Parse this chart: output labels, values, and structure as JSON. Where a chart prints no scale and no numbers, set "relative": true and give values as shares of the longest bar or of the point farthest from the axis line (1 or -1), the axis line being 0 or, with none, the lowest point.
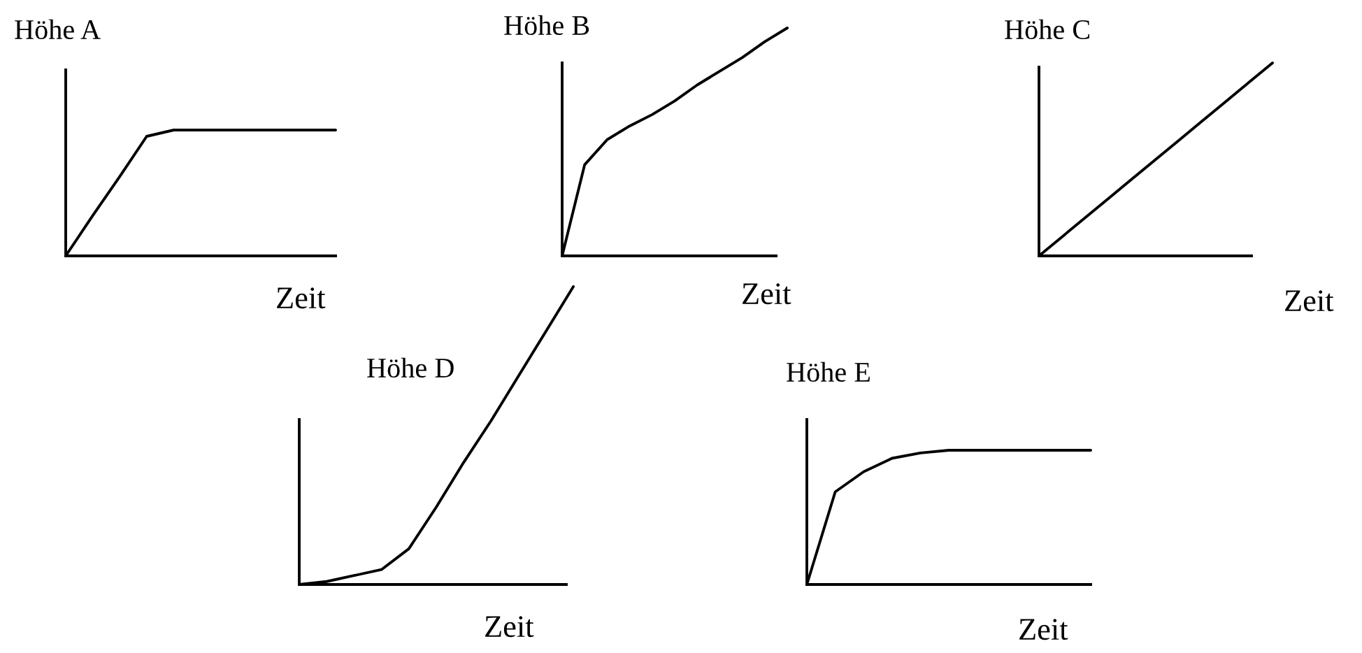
{
  "chart_data": [
    {
      "type": "line",
      "relative": true,
      "ylabel": "Höhe A",
      "xlabel": "Zeit",
      "categories": [
        null,
        null,
        null,
        null,
        null,
        null,
        null,
        null,
        null,
        null,
        null
      ],
      "color": "#000000",
      "values": [
        0,
        0.32,
        0.63,
        0.95,
        1,
        1,
        1,
        1,
        1,
        1,
        1
      ]
    },
    {
      "type": "line",
      "relative": true,
      "ylabel": "Höhe B",
      "xlabel": "Zeit",
      "categories": [
        null,
        null,
        null,
        null,
        null,
        null,
        null,
        null,
        null,
        null,
        null
      ],
      "color": "#000000",
      "values": [
        0,
        0.4,
        0.51,
        0.57,
        0.62,
        0.68,
        0.75,
        0.81,
        0.87,
        0.94,
        1
      ]
    },
    {
      "type": "line",
      "relative": true,
      "ylabel": "Höhe C",
      "xlabel": "Zeit",
      "categories": [
        null,
        null,
        null,
        null,
        null,
        null,
        null,
        null,
        null,
        null,
        null
      ],
      "color": "#000000",
      "values": [
        0,
        0.1,
        0.2,
        0.3,
        0.4,
        0.5,
        0.6,
        0.7,
        0.8,
        0.9,
        1
      ]
    },
    {
      "type": "line",
      "relative": true,
      "ylabel": "Höhe D",
      "xlabel": "Zeit",
      "categories": [
        null,
        null,
        null,
        null,
        null,
        null,
        null,
        null,
        null,
        null,
        null
      ],
      "color": "#000000",
      "values": [
        0,
        0.01,
        0.03,
        0.05,
        0.12,
        0.26,
        0.41,
        0.55,
        0.7,
        0.85,
        1
      ]
    },
    {
      "type": "line",
      "relative": true,
      "ylabel": "Höhe E",
      "xlabel": "Zeit",
      "categories": [
        null,
        null,
        null,
        null,
        null,
        null,
        null,
        null,
        null,
        null,
        null
      ],
      "color": "#000000",
      "values": [
        0,
        0.69,
        0.84,
        0.94,
        0.98,
        1,
        1,
        1,
        1,
        1,
        1
      ]
    }
  ]
}
